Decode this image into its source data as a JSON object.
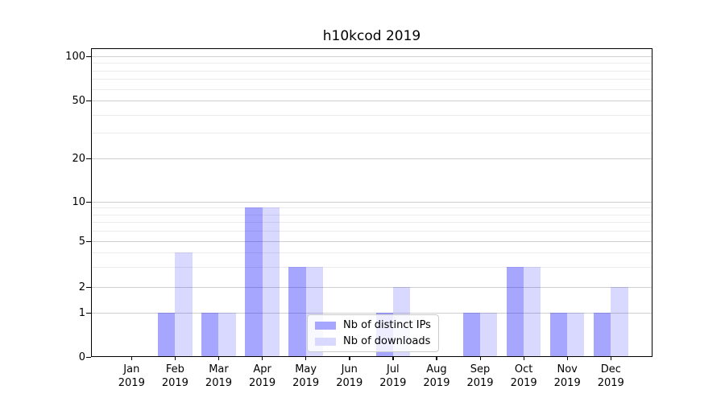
{
  "page": {
    "background": "#ffffff"
  },
  "chart_data": {
    "type": "bar",
    "title": "h10kcod 2019",
    "categories": [
      "Jan",
      "Feb",
      "Mar",
      "Apr",
      "May",
      "Jun",
      "Jul",
      "Aug",
      "Sep",
      "Oct",
      "Nov",
      "Dec"
    ],
    "x_tick_year": "2019",
    "series": [
      {
        "name": "Nb of distinct IPs",
        "color": "rgba(0,0,255,0.35)",
        "color_hex": "#a6a6ff",
        "values": [
          0,
          1,
          1,
          9,
          3,
          0,
          1,
          0,
          1,
          3,
          1,
          1
        ]
      },
      {
        "name": "Nb of downloads",
        "color": "rgba(0,0,255,0.15)",
        "color_hex": "#d9d9ff",
        "values": [
          0,
          4,
          1,
          9,
          3,
          0,
          2,
          0,
          1,
          3,
          1,
          2
        ]
      }
    ],
    "xlabel": "",
    "ylabel": "",
    "yaxis": {
      "scale": "symlog-like",
      "major_ticks": [
        0,
        1,
        2,
        5,
        10,
        20,
        50,
        100
      ],
      "minor_ticks": [
        3,
        4,
        6,
        7,
        8,
        9,
        30,
        40,
        60,
        70,
        80,
        90
      ],
      "range": [
        0,
        115
      ]
    },
    "legend": {
      "location": "lower center",
      "entries": [
        "Nb of distinct IPs",
        "Nb of downloads"
      ]
    },
    "grid": {
      "on": true,
      "major_color": "#cfcfcf",
      "minor_color": "#ebebeb"
    }
  },
  "colors": {
    "axis": "#000000",
    "text": "#000000",
    "legend_border": "#cccccc",
    "legend_background": "rgba(255,255,255,0.8)"
  }
}
